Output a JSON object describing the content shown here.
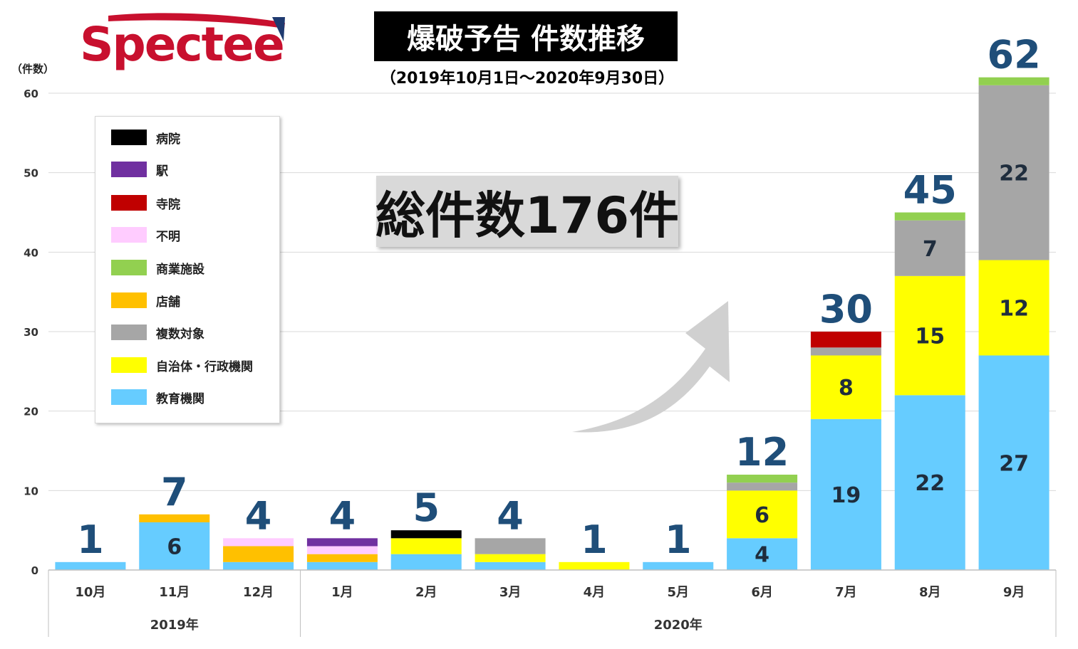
{
  "logo": {
    "text": "Spectee"
  },
  "header": {
    "title": "爆破予告 件数推移",
    "subtitle": "（2019年10月1日～2020年9月30日）",
    "y_unit": "（件数）"
  },
  "total_label": "総件数176件",
  "legend": [
    {
      "name": "病院",
      "color": "#000000"
    },
    {
      "name": "駅",
      "color": "#7030a0"
    },
    {
      "name": "寺院",
      "color": "#c00000"
    },
    {
      "name": "不明",
      "color": "#ffccff"
    },
    {
      "name": "商業施設",
      "color": "#92d050"
    },
    {
      "name": "店舗",
      "color": "#ffc000"
    },
    {
      "name": "複数対象",
      "color": "#a6a6a6"
    },
    {
      "name": "自治体・行政機関",
      "color": "#ffff00"
    },
    {
      "name": "教育機関",
      "color": "#66ccff"
    }
  ],
  "chart_data": {
    "type": "bar",
    "stacked": true,
    "title": "爆破予告 件数推移",
    "subtitle": "（2019年10月1日～2020年9月30日）",
    "ylabel": "（件数）",
    "ylim": [
      0,
      60
    ],
    "yticks": [
      "0",
      "10",
      "20",
      "30",
      "40",
      "50",
      "60"
    ],
    "grid": true,
    "legend_position": "top-left",
    "categories": [
      "10月",
      "11月",
      "12月",
      "1月",
      "2月",
      "3月",
      "4月",
      "5月",
      "6月",
      "7月",
      "8月",
      "9月"
    ],
    "year_groups": [
      {
        "label": "2019年",
        "count": 3
      },
      {
        "label": "2020年",
        "count": 9
      }
    ],
    "totals": [
      "1",
      "7",
      "4",
      "4",
      "5",
      "4",
      "1",
      "1",
      "12",
      "30",
      "45",
      "62"
    ],
    "series": [
      {
        "name": "教育機関",
        "color": "#66ccff",
        "values": [
          1,
          6,
          1,
          1,
          2,
          1,
          0,
          1,
          4,
          19,
          22,
          27
        ]
      },
      {
        "name": "自治体・行政機関",
        "color": "#ffff00",
        "values": [
          0,
          0,
          0,
          0,
          2,
          1,
          1,
          0,
          6,
          8,
          15,
          12
        ]
      },
      {
        "name": "複数対象",
        "color": "#a6a6a6",
        "values": [
          0,
          0,
          0,
          0,
          0,
          2,
          0,
          0,
          1,
          1,
          7,
          22
        ]
      },
      {
        "name": "店舗",
        "color": "#ffc000",
        "values": [
          0,
          1,
          2,
          1,
          0,
          0,
          0,
          0,
          0,
          0,
          0,
          0
        ]
      },
      {
        "name": "商業施設",
        "color": "#92d050",
        "values": [
          0,
          0,
          0,
          0,
          0,
          0,
          0,
          0,
          1,
          0,
          1,
          1
        ]
      },
      {
        "name": "不明",
        "color": "#ffccff",
        "values": [
          0,
          0,
          1,
          1,
          0,
          0,
          0,
          0,
          0,
          0,
          0,
          0
        ]
      },
      {
        "name": "寺院",
        "color": "#c00000",
        "values": [
          0,
          0,
          0,
          0,
          0,
          0,
          0,
          0,
          0,
          2,
          0,
          0
        ]
      },
      {
        "name": "駅",
        "color": "#7030a0",
        "values": [
          0,
          0,
          0,
          1,
          0,
          0,
          0,
          0,
          0,
          0,
          0,
          0
        ]
      },
      {
        "name": "病院",
        "color": "#000000",
        "values": [
          0,
          0,
          0,
          0,
          1,
          0,
          0,
          0,
          0,
          0,
          0,
          0
        ]
      }
    ],
    "segment_labels": [
      {
        "series": "教育機関",
        "category": "11月",
        "text": "6"
      },
      {
        "series": "教育機関",
        "category": "6月",
        "text": "4"
      },
      {
        "series": "自治体・行政機関",
        "category": "6月",
        "text": "6"
      },
      {
        "series": "教育機関",
        "category": "7月",
        "text": "19"
      },
      {
        "series": "自治体・行政機関",
        "category": "7月",
        "text": "8"
      },
      {
        "series": "教育機関",
        "category": "8月",
        "text": "22"
      },
      {
        "series": "自治体・行政機関",
        "category": "8月",
        "text": "15"
      },
      {
        "series": "複数対象",
        "category": "8月",
        "text": "7"
      },
      {
        "series": "教育機関",
        "category": "9月",
        "text": "27"
      },
      {
        "series": "自治体・行政機関",
        "category": "9月",
        "text": "12"
      },
      {
        "series": "複数対象",
        "category": "9月",
        "text": "22"
      }
    ]
  }
}
